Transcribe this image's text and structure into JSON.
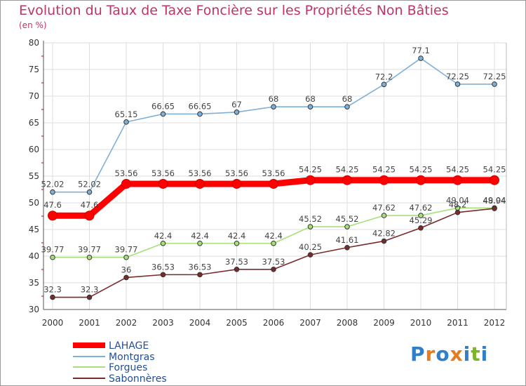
{
  "title": "Evolution du Taux de Taxe Foncière sur les Propriétés Non Bâties",
  "unit_label": "(en %)",
  "logo_text": "Proxiti",
  "colors": {
    "title": "#c0336a",
    "LAHAGE": "#ff0000",
    "Montgras": "#7fb0d8",
    "Forgues": "#a6e07a",
    "Sabonneres": "#7a2a2a"
  },
  "chart_data": {
    "type": "line",
    "title": "Evolution du Taux de Taxe Foncière sur les Propriétés Non Bâties",
    "ylabel": "(en %)",
    "xlabel": "",
    "ylim": [
      30,
      80
    ],
    "yticks": [
      30,
      35,
      40,
      45,
      50,
      55,
      60,
      65,
      70,
      75,
      80
    ],
    "grid": true,
    "legend_position": "bottom-left",
    "categories": [
      "2000",
      "2001",
      "2002",
      "2003",
      "2004",
      "2005",
      "2006",
      "2007",
      "2008",
      "2009",
      "2010",
      "2011",
      "2012"
    ],
    "series": [
      {
        "name": "LAHAGE",
        "color": "#ff0000",
        "values": [
          47.6,
          47.6,
          53.56,
          53.56,
          53.56,
          53.56,
          53.56,
          54.25,
          54.25,
          54.25,
          54.25,
          54.25,
          54.25
        ],
        "labels": [
          "47.6",
          "47.6",
          "53.56",
          "53.56",
          "53.56",
          "53.56",
          "53.56",
          "54.25",
          "54.25",
          "54.25",
          "54.25",
          "54.25",
          "54.25"
        ]
      },
      {
        "name": "Montgras",
        "color": "#7fb0d8",
        "values": [
          52.02,
          52.02,
          65.15,
          66.65,
          66.65,
          67,
          68,
          68,
          68,
          72.2,
          77.1,
          72.25,
          72.25
        ],
        "labels": [
          "52.02",
          "52.02",
          "65.15",
          "66.65",
          "66.65",
          "67",
          "68",
          "68",
          "68",
          "72.2",
          "77.1",
          "72.25",
          "72.25"
        ]
      },
      {
        "name": "Forgues",
        "color": "#a6e07a",
        "values": [
          39.77,
          39.77,
          39.77,
          42.4,
          42.4,
          42.4,
          42.4,
          45.52,
          45.52,
          47.62,
          47.62,
          49.04,
          49.04
        ],
        "labels": [
          "39.77",
          "39.77",
          "39.77",
          "42.4",
          "42.4",
          "42.4",
          "42.4",
          "45.52",
          "45.52",
          "47.62",
          "47.62",
          "49.04",
          "49.04"
        ]
      },
      {
        "name": "Sabonnères",
        "color": "#7a2a2a",
        "values": [
          32.3,
          32.3,
          36,
          36.53,
          36.53,
          37.53,
          37.53,
          40.25,
          41.61,
          42.82,
          45.29,
          48.2,
          48.94
        ],
        "labels": [
          "32.3",
          "32.3",
          "36",
          "36.53",
          "36.53",
          "37.53",
          "37.53",
          "40.25",
          "41.61",
          "42.82",
          "45.29",
          "48.2",
          "48.94"
        ]
      }
    ]
  }
}
